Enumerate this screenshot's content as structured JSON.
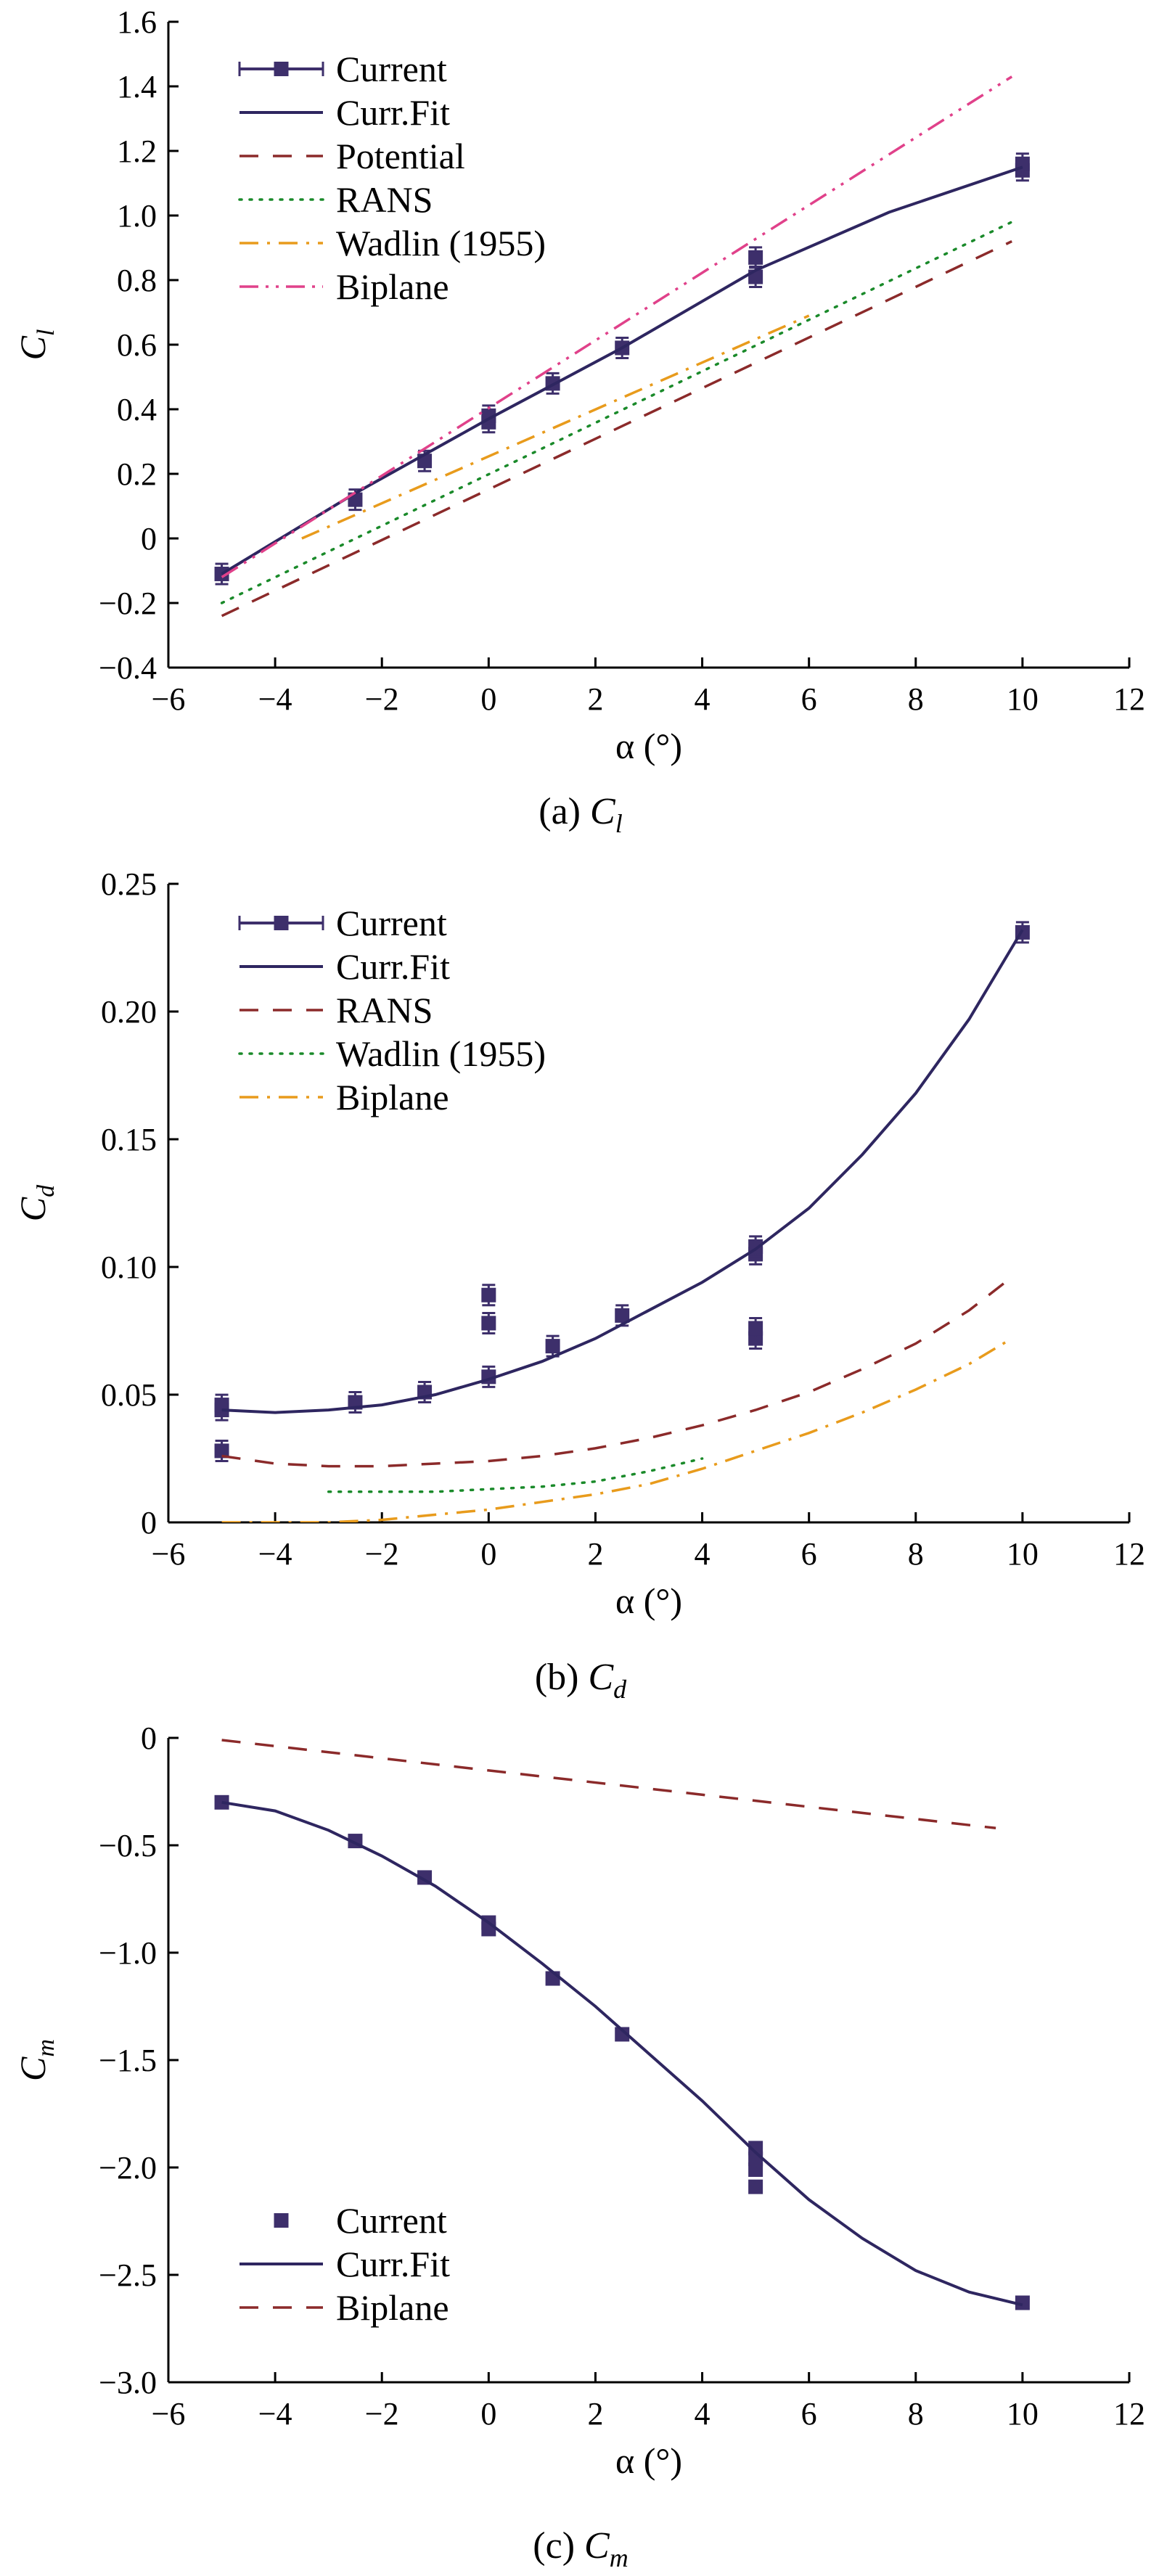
{
  "chart_data": [
    {
      "type": "line",
      "id": "cl",
      "title": "",
      "caption": {
        "prefix": "(a) ",
        "main": "C",
        "sub": "l"
      },
      "xlabel": "α (°)",
      "ylabel": {
        "main": "C",
        "sub": "l"
      },
      "xlim": [
        -6,
        12
      ],
      "ylim": [
        -0.4,
        1.6
      ],
      "xticks": [
        -6,
        -4,
        -2,
        0,
        2,
        4,
        6,
        8,
        10,
        12
      ],
      "xtick_labels": [
        "−6",
        "−4",
        "−2",
        "0",
        "2",
        "4",
        "6",
        "8",
        "10",
        "12"
      ],
      "yticks": [
        -0.4,
        -0.2,
        0,
        0.2,
        0.4,
        0.6,
        0.8,
        1.0,
        1.2,
        1.4,
        1.6
      ],
      "ytick_labels": [
        "−0.4",
        "−0.2",
        "0",
        "0.2",
        "0.4",
        "0.6",
        "0.8",
        "1.0",
        "1.2",
        "1.4",
        "1.6"
      ],
      "legend_position": "top-left",
      "series": [
        {
          "name": "Current",
          "style": "marker-errorbar",
          "color": "#3d2f6b",
          "x": [
            -5,
            -2.5,
            -1.2,
            0,
            0,
            1.2,
            2.5,
            5,
            5,
            10,
            10
          ],
          "y": [
            -0.11,
            0.12,
            0.24,
            0.36,
            0.38,
            0.48,
            0.59,
            0.81,
            0.87,
            1.14,
            1.16
          ]
        },
        {
          "name": "Curr.Fit",
          "style": "solid",
          "color": "#2e2660",
          "x": [
            -5,
            -2.5,
            0,
            2.5,
            5,
            7.5,
            10
          ],
          "y": [
            -0.11,
            0.14,
            0.37,
            0.59,
            0.83,
            1.01,
            1.15
          ]
        },
        {
          "name": "Potential",
          "style": "dashed",
          "color": "#8b2a2a",
          "x": [
            -5,
            9.8
          ],
          "y": [
            -0.24,
            0.92
          ]
        },
        {
          "name": "RANS",
          "style": "dotted",
          "color": "#1a8a2a",
          "x": [
            -5,
            9.8
          ],
          "y": [
            -0.2,
            0.98
          ]
        },
        {
          "name": "Wadlin (1955)",
          "style": "dashdot",
          "color": "#e89b1c",
          "x": [
            -3.5,
            6
          ],
          "y": [
            0.0,
            0.69
          ]
        },
        {
          "name": "Biplane",
          "style": "dashdotdot",
          "color": "#e0418a",
          "x": [
            -5,
            9.8
          ],
          "y": [
            -0.12,
            1.43
          ]
        }
      ]
    },
    {
      "type": "line",
      "id": "cd",
      "title": "",
      "caption": {
        "prefix": "(b) ",
        "main": "C",
        "sub": "d"
      },
      "xlabel": "α (°)",
      "ylabel": {
        "main": "C",
        "sub": "d"
      },
      "xlim": [
        -6,
        12
      ],
      "ylim": [
        0,
        0.25
      ],
      "xticks": [
        -6,
        -4,
        -2,
        0,
        2,
        4,
        6,
        8,
        10,
        12
      ],
      "xtick_labels": [
        "−6",
        "−4",
        "−2",
        "0",
        "2",
        "4",
        "6",
        "8",
        "10",
        "12"
      ],
      "yticks": [
        0,
        0.05,
        0.1,
        0.15,
        0.2,
        0.25
      ],
      "ytick_labels": [
        "0",
        "0.05",
        "0.10",
        "0.15",
        "0.20",
        "0.25"
      ],
      "legend_position": "top-left",
      "series": [
        {
          "name": "Current",
          "style": "marker-errorbar",
          "color": "#3d2f6b",
          "x": [
            -5,
            -5,
            -5,
            -2.5,
            -1.2,
            0,
            0,
            0,
            1.2,
            2.5,
            5,
            5,
            5,
            5,
            10
          ],
          "y": [
            0.028,
            0.044,
            0.046,
            0.047,
            0.051,
            0.057,
            0.078,
            0.089,
            0.069,
            0.081,
            0.072,
            0.076,
            0.105,
            0.108,
            0.231
          ]
        },
        {
          "name": "Curr.Fit",
          "style": "solid",
          "color": "#2e2660",
          "x": [
            -5,
            -4,
            -3,
            -2,
            -1,
            0,
            1,
            2,
            3,
            4,
            5,
            6,
            7,
            8,
            9,
            10
          ],
          "y": [
            0.044,
            0.043,
            0.044,
            0.046,
            0.05,
            0.056,
            0.063,
            0.072,
            0.083,
            0.094,
            0.107,
            0.123,
            0.144,
            0.168,
            0.197,
            0.232
          ]
        },
        {
          "name": "RANS",
          "style": "dashed",
          "color": "#8b2a2a",
          "x": [
            -5,
            -4,
            -3,
            -2,
            -1,
            0,
            1,
            2,
            3,
            4,
            5,
            6,
            7,
            8,
            9,
            9.8
          ],
          "y": [
            0.026,
            0.023,
            0.022,
            0.022,
            0.023,
            0.024,
            0.026,
            0.029,
            0.033,
            0.038,
            0.044,
            0.051,
            0.06,
            0.07,
            0.083,
            0.096
          ]
        },
        {
          "name": "Wadlin (1955)",
          "style": "dotted",
          "color": "#1a8a2a",
          "x": [
            -3,
            -2,
            -1,
            0,
            1,
            2,
            3,
            4
          ],
          "y": [
            0.012,
            0.012,
            0.012,
            0.013,
            0.014,
            0.016,
            0.02,
            0.025
          ]
        },
        {
          "name": "Biplane",
          "style": "dashdot",
          "color": "#e89b1c",
          "x": [
            -5,
            -4,
            -3,
            -2,
            -1,
            0,
            1,
            2,
            3,
            4,
            5,
            6,
            7,
            8,
            9,
            9.8
          ],
          "y": [
            0.0,
            0.0,
            0.0,
            0.001,
            0.003,
            0.005,
            0.008,
            0.011,
            0.015,
            0.021,
            0.028,
            0.035,
            0.043,
            0.052,
            0.062,
            0.072
          ]
        }
      ]
    },
    {
      "type": "line",
      "id": "cm",
      "title": "",
      "caption": {
        "prefix": "(c) ",
        "main": "C",
        "sub": "m"
      },
      "xlabel": "α (°)",
      "ylabel": {
        "main": "C",
        "sub": "m"
      },
      "xlim": [
        -6,
        12
      ],
      "ylim": [
        -3.0,
        0
      ],
      "xticks": [
        -6,
        -4,
        -2,
        0,
        2,
        4,
        6,
        8,
        10,
        12
      ],
      "xtick_labels": [
        "−6",
        "−4",
        "−2",
        "0",
        "2",
        "4",
        "6",
        "8",
        "10",
        "12"
      ],
      "yticks": [
        -3.0,
        -2.5,
        -2.0,
        -1.5,
        -1.0,
        -0.5,
        0
      ],
      "ytick_labels": [
        "−3.0",
        "−2.5",
        "−2.0",
        "−1.5",
        "−1.0",
        "−0.5",
        "0"
      ],
      "legend_position": "bottom-left",
      "series": [
        {
          "name": "Current",
          "style": "marker",
          "color": "#3d2f6b",
          "x": [
            -5,
            -2.5,
            -1.2,
            0,
            0,
            1.2,
            2.5,
            5,
            5,
            5,
            5,
            10
          ],
          "y": [
            -0.3,
            -0.48,
            -0.65,
            -0.86,
            -0.89,
            -1.12,
            -1.38,
            -1.91,
            -1.96,
            -2.01,
            -2.09,
            -2.63
          ]
        },
        {
          "name": "Curr.Fit",
          "style": "solid",
          "color": "#2e2660",
          "x": [
            -5,
            -4,
            -3,
            -2,
            -1,
            0,
            1,
            2,
            3,
            4,
            5,
            6,
            7,
            8,
            9,
            10
          ],
          "y": [
            -0.3,
            -0.34,
            -0.43,
            -0.55,
            -0.69,
            -0.86,
            -1.05,
            -1.25,
            -1.47,
            -1.69,
            -1.93,
            -2.15,
            -2.33,
            -2.48,
            -2.58,
            -2.64
          ]
        },
        {
          "name": "Biplane",
          "style": "dashed",
          "color": "#8b2a2a",
          "x": [
            -5,
            9.5
          ],
          "y": [
            -0.01,
            -0.42
          ]
        }
      ]
    }
  ]
}
